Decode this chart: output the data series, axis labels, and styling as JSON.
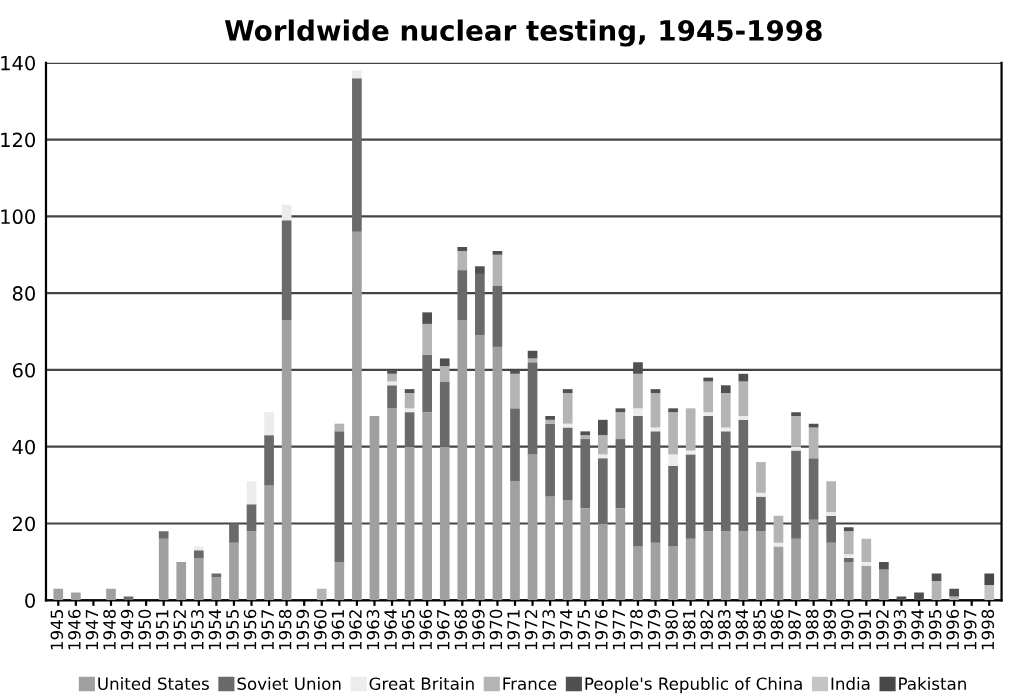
{
  "chart_data": {
    "type": "bar",
    "stacked": true,
    "title": "Worldwide nuclear testing, 1945-1998",
    "categories": [
      "1945",
      "1946",
      "1947",
      "1948",
      "1949",
      "1950",
      "1951",
      "1952",
      "1953",
      "1954",
      "1955",
      "1956",
      "1957",
      "1958",
      "1959",
      "1960",
      "1961",
      "1962",
      "1963",
      "1964",
      "1965",
      "1966",
      "1967",
      "1968",
      "1969",
      "1970",
      "1971",
      "1972",
      "1973",
      "1974",
      "1975",
      "1976",
      "1977",
      "1978",
      "1979",
      "1980",
      "1981",
      "1982",
      "1983",
      "1984",
      "1985",
      "1986",
      "1987",
      "1988",
      "1989",
      "1990",
      "1991",
      "1992",
      "1993",
      "1994",
      "1995",
      "1996",
      "1997",
      "1998"
    ],
    "series": [
      {
        "name": "United States",
        "color": "#a0a0a0",
        "values": [
          3,
          2,
          0,
          3,
          0,
          0,
          16,
          10,
          11,
          6,
          15,
          18,
          30,
          73,
          0,
          0,
          10,
          96,
          48,
          50,
          40,
          49,
          40,
          73,
          69,
          66,
          31,
          38,
          27,
          26,
          24,
          20,
          24,
          14,
          15,
          14,
          16,
          18,
          18,
          18,
          18,
          14,
          16,
          21,
          15,
          10,
          9,
          8,
          0,
          0,
          0,
          0,
          0,
          0
        ]
      },
      {
        "name": "Soviet Union",
        "color": "#6a6a6a",
        "values": [
          0,
          0,
          0,
          0,
          1,
          0,
          2,
          0,
          2,
          1,
          5,
          7,
          13,
          26,
          0,
          0,
          34,
          40,
          0,
          6,
          9,
          15,
          17,
          13,
          16,
          16,
          19,
          24,
          19,
          19,
          18,
          17,
          18,
          34,
          29,
          21,
          22,
          30,
          26,
          29,
          9,
          0,
          23,
          16,
          7,
          1,
          0,
          0,
          0,
          0,
          0,
          0,
          0,
          0
        ]
      },
      {
        "name": "Great Britain",
        "color": "#ececec",
        "values": [
          0,
          0,
          0,
          0,
          0,
          0,
          0,
          0,
          1,
          0,
          0,
          6,
          6,
          4,
          0,
          0,
          0,
          2,
          0,
          1,
          1,
          0,
          0,
          0,
          0,
          0,
          0,
          0,
          0,
          1,
          0,
          1,
          0,
          2,
          1,
          3,
          1,
          1,
          1,
          1,
          1,
          1,
          1,
          0,
          1,
          1,
          1,
          0,
          0,
          0,
          0,
          0,
          0,
          0
        ]
      },
      {
        "name": "France",
        "color": "#b4b4b4",
        "values": [
          0,
          0,
          0,
          0,
          0,
          0,
          0,
          0,
          0,
          0,
          0,
          0,
          0,
          0,
          0,
          3,
          2,
          0,
          0,
          2,
          4,
          8,
          4,
          5,
          0,
          8,
          9,
          1,
          1,
          8,
          1,
          5,
          7,
          9,
          9,
          11,
          11,
          8,
          9,
          9,
          8,
          7,
          8,
          8,
          8,
          6,
          6,
          0,
          0,
          0,
          5,
          1,
          0,
          0
        ]
      },
      {
        "name": "People's Republic of China",
        "color": "#505050",
        "values": [
          0,
          0,
          0,
          0,
          0,
          0,
          0,
          0,
          0,
          0,
          0,
          0,
          0,
          0,
          0,
          0,
          0,
          0,
          0,
          1,
          1,
          3,
          2,
          1,
          2,
          1,
          1,
          2,
          1,
          1,
          1,
          4,
          1,
          3,
          1,
          1,
          0,
          1,
          2,
          2,
          0,
          0,
          1,
          1,
          0,
          1,
          0,
          2,
          1,
          2,
          2,
          2,
          0,
          0
        ]
      },
      {
        "name": "India",
        "color": "#c4c4c4",
        "values": [
          0,
          0,
          0,
          0,
          0,
          0,
          0,
          0,
          0,
          0,
          0,
          0,
          0,
          0,
          0,
          0,
          0,
          0,
          0,
          0,
          0,
          0,
          0,
          0,
          0,
          0,
          0,
          0,
          0,
          0,
          0,
          0,
          0,
          0,
          0,
          0,
          0,
          0,
          0,
          0,
          0,
          0,
          0,
          0,
          0,
          0,
          0,
          0,
          0,
          0,
          0,
          0,
          0,
          4
        ]
      },
      {
        "name": "Pakistan",
        "color": "#484848",
        "values": [
          0,
          0,
          0,
          0,
          0,
          0,
          0,
          0,
          0,
          0,
          0,
          0,
          0,
          0,
          0,
          0,
          0,
          0,
          0,
          0,
          0,
          0,
          0,
          0,
          0,
          0,
          0,
          0,
          0,
          0,
          0,
          0,
          0,
          0,
          0,
          0,
          0,
          0,
          0,
          0,
          0,
          0,
          0,
          0,
          0,
          0,
          0,
          0,
          0,
          0,
          0,
          0,
          0,
          3
        ]
      }
    ],
    "ylim": [
      0,
      140
    ],
    "yticks": [
      0,
      20,
      40,
      60,
      80,
      100,
      120,
      140
    ],
    "grid": "y",
    "legend": "bottom"
  }
}
